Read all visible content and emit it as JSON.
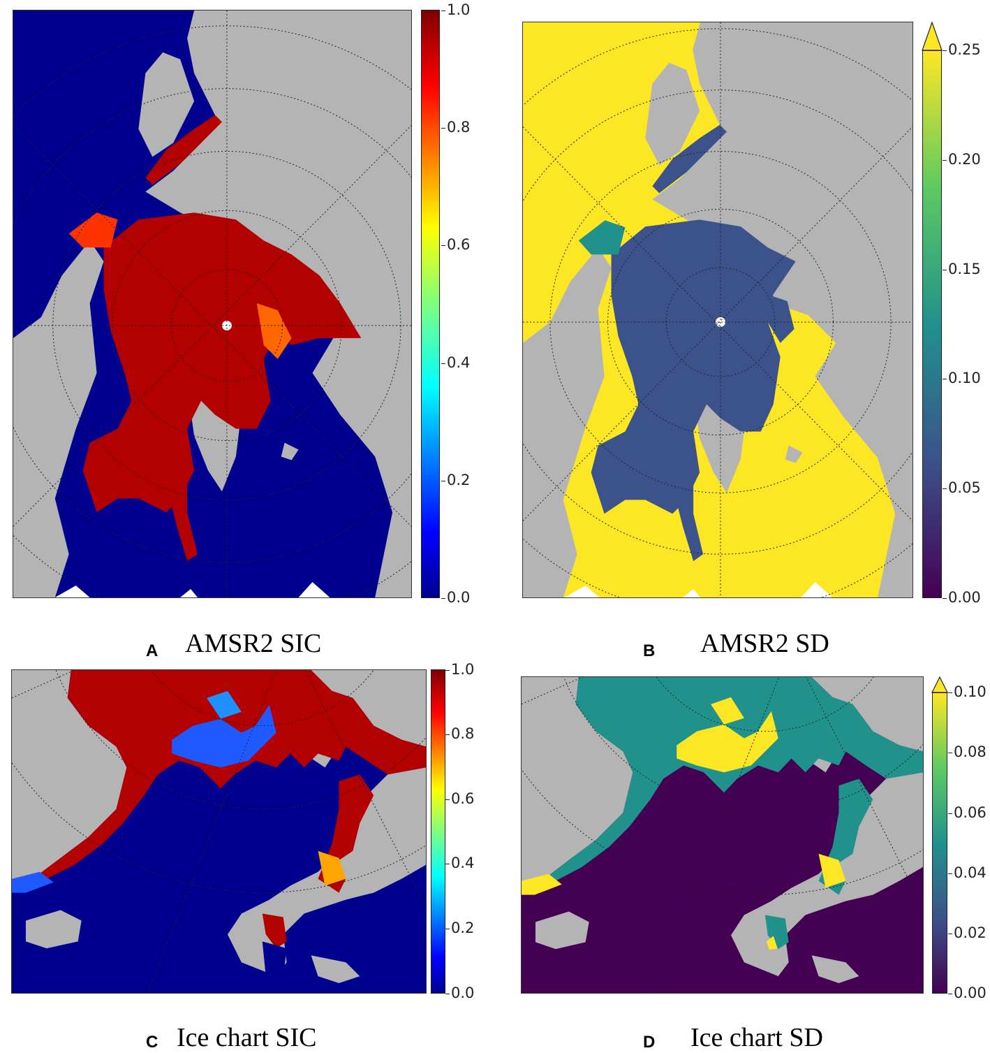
{
  "colors": {
    "land": "#b4b4b4",
    "jet_high": "#b30000",
    "jet_low": "#00008f",
    "viridis_high": "#fde725",
    "viridis_mid": "#21918c",
    "viridis_low_ice": "#3b528b",
    "viridis_low": "#440154"
  },
  "panels": [
    {
      "letter": "A",
      "title": "AMSR2 SIC",
      "colormap": "jet",
      "colorbar_ticks": [
        "0.0",
        "0.2",
        "0.4",
        "0.6",
        "0.8",
        "1.0"
      ],
      "colorbar_extend": "none"
    },
    {
      "letter": "B",
      "title": "AMSR2 SD",
      "colormap": "viridis",
      "colorbar_ticks": [
        "0.00",
        "0.05",
        "0.10",
        "0.15",
        "0.20",
        "0.25"
      ],
      "colorbar_extend": "max"
    },
    {
      "letter": "C",
      "title": "Ice chart SIC",
      "colormap": "jet",
      "colorbar_ticks": [
        "0.0",
        "0.2",
        "0.4",
        "0.6",
        "0.8",
        "1.0"
      ],
      "colorbar_extend": "none"
    },
    {
      "letter": "D",
      "title": "Ice chart SD",
      "colormap": "viridis",
      "colorbar_ticks": [
        "0.00",
        "0.02",
        "0.04",
        "0.06",
        "0.08",
        "0.10"
      ],
      "colorbar_extend": "max"
    }
  ]
}
